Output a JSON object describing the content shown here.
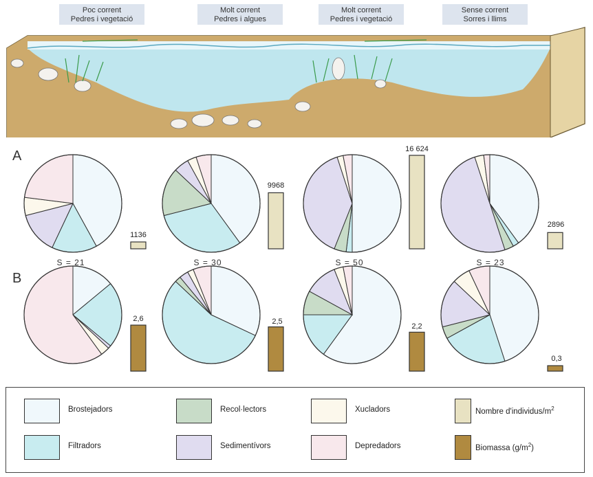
{
  "zones": [
    {
      "line1": "Poc corrent",
      "line2": "Pedres i vegetació"
    },
    {
      "line1": "Molt corrent",
      "line2": "Pedres i algues"
    },
    {
      "line1": "Molt corrent",
      "line2": "Pedres i vegetació"
    },
    {
      "line1": "Sense corrent",
      "line2": "Sorres i llims"
    }
  ],
  "row_labels": {
    "a": "A",
    "b": "B"
  },
  "colors": {
    "Brostejadors": "#f0f8fc",
    "Filtradors": "#c8ecf0",
    "Recol·lectors": "#c8dcc8",
    "Sedimentívors": "#e0dcf0",
    "Xucladors": "#fcf8ec",
    "Depredadors": "#f8e8ec",
    "individus_bar": "#e8e2c2",
    "biomassa_bar": "#b08a40",
    "water": "#bfe6ee",
    "soil": "#cdaa6c"
  },
  "legend": {
    "items": [
      {
        "key": "Brostejadors",
        "label": "Brostejadors"
      },
      {
        "key": "Filtradors",
        "label": "Filtradors"
      },
      {
        "key": "Recol·lectors",
        "label": "Recol·lectors"
      },
      {
        "key": "Sedimentívors",
        "label": "Sedimentívors"
      },
      {
        "key": "Xucladors",
        "label": "Xucladors"
      },
      {
        "key": "Depredadors",
        "label": "Depredadors"
      }
    ],
    "individus_label": "Nombre d'individus/m",
    "individus_sup": "2",
    "biomassa_label": "Biomassa (g/m",
    "biomassa_sup": "2",
    "biomassa_end": ")"
  },
  "chart_data": {
    "type": "pie",
    "group_order": [
      "Brostejadors",
      "Filtradors",
      "Recol·lectors",
      "Sedimentívors",
      "Xucladors",
      "Depredadors"
    ],
    "row_a": [
      {
        "slices": [
          {
            "group": "Brostejadors",
            "value": 42
          },
          {
            "group": "Filtradors",
            "value": 15
          },
          {
            "group": "Sedimentívors",
            "value": 14
          },
          {
            "group": "Xucladors",
            "value": 6
          },
          {
            "group": "Depredadors",
            "value": 23
          }
        ],
        "bar_value": 1136,
        "bar_label": "1136",
        "S_label": "S = 21"
      },
      {
        "slices": [
          {
            "group": "Brostejadors",
            "value": 40
          },
          {
            "group": "Filtradors",
            "value": 31
          },
          {
            "group": "Recol·lectors",
            "value": 16
          },
          {
            "group": "Sedimentívors",
            "value": 5
          },
          {
            "group": "Xucladors",
            "value": 3
          },
          {
            "group": "Depredadors",
            "value": 5
          }
        ],
        "bar_value": 9968,
        "bar_label": "9968",
        "S_label": "S = 30"
      },
      {
        "slices": [
          {
            "group": "Brostejadors",
            "value": 50
          },
          {
            "group": "Filtradors",
            "value": 2
          },
          {
            "group": "Recol·lectors",
            "value": 4
          },
          {
            "group": "Sedimentívors",
            "value": 39
          },
          {
            "group": "Xucladors",
            "value": 2
          },
          {
            "group": "Depredadors",
            "value": 3
          }
        ],
        "bar_value": 16624,
        "bar_label": "16 624",
        "S_label": "S = 50"
      },
      {
        "slices": [
          {
            "group": "Brostejadors",
            "value": 40
          },
          {
            "group": "Filtradors",
            "value": 2
          },
          {
            "group": "Recol·lectors",
            "value": 3
          },
          {
            "group": "Sedimentívors",
            "value": 50
          },
          {
            "group": "Xucladors",
            "value": 3
          },
          {
            "group": "Depredadors",
            "value": 2
          }
        ],
        "bar_value": 2896,
        "bar_label": "2896",
        "S_label": "S = 23"
      }
    ],
    "row_b": [
      {
        "slices": [
          {
            "group": "Brostejadors",
            "value": 14
          },
          {
            "group": "Filtradors",
            "value": 22
          },
          {
            "group": "Sedimentívors",
            "value": 1
          },
          {
            "group": "Xucladors",
            "value": 3
          },
          {
            "group": "Depredadors",
            "value": 60
          }
        ],
        "bar_value": 2.6,
        "bar_label": "2,6"
      },
      {
        "slices": [
          {
            "group": "Brostejadors",
            "value": 32
          },
          {
            "group": "Filtradors",
            "value": 55
          },
          {
            "group": "Recol·lectors",
            "value": 2
          },
          {
            "group": "Sedimentívors",
            "value": 3
          },
          {
            "group": "Xucladors",
            "value": 2
          },
          {
            "group": "Depredadors",
            "value": 6
          }
        ],
        "bar_value": 2.5,
        "bar_label": "2,5"
      },
      {
        "slices": [
          {
            "group": "Brostejadors",
            "value": 60
          },
          {
            "group": "Filtradors",
            "value": 15
          },
          {
            "group": "Recol·lectors",
            "value": 8
          },
          {
            "group": "Sedimentívors",
            "value": 11
          },
          {
            "group": "Xucladors",
            "value": 3
          },
          {
            "group": "Depredadors",
            "value": 3
          }
        ],
        "bar_value": 2.2,
        "bar_label": "2,2"
      },
      {
        "slices": [
          {
            "group": "Brostejadors",
            "value": 45
          },
          {
            "group": "Filtradors",
            "value": 22
          },
          {
            "group": "Recol·lectors",
            "value": 4
          },
          {
            "group": "Sedimentívors",
            "value": 16
          },
          {
            "group": "Xucladors",
            "value": 6
          },
          {
            "group": "Depredadors",
            "value": 7
          }
        ],
        "bar_value": 0.3,
        "bar_label": "0,3"
      }
    ]
  }
}
